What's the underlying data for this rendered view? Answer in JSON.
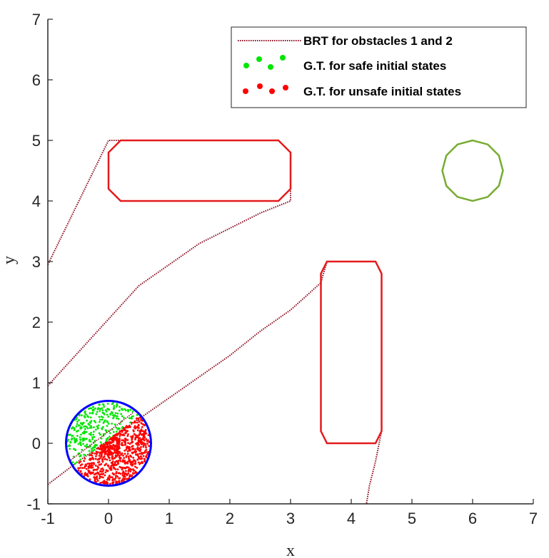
{
  "chart_data": {
    "type": "scatter",
    "xlabel": "x",
    "ylabel": "y",
    "xlim": [
      -1,
      7
    ],
    "ylim": [
      -1,
      7
    ],
    "xticks": [
      -1,
      0,
      1,
      2,
      3,
      4,
      5,
      6,
      7
    ],
    "yticks": [
      -1,
      0,
      1,
      2,
      3,
      4,
      5,
      6,
      7
    ],
    "grid": false,
    "legend_position": "top-right",
    "legend": [
      {
        "label": "BRT for obstacles 1 and 2",
        "kind": "dotted-line",
        "color": "#8b0a1e"
      },
      {
        "label": "G.T. for safe initial states",
        "kind": "markers",
        "color": "#00e600"
      },
      {
        "label": "G.T. for unsafe initial states",
        "kind": "markers",
        "color": "#ff0000"
      }
    ],
    "obstacles": [
      {
        "name": "obstacle-1",
        "color": "#e41a1c",
        "points": [
          [
            0.2,
            4.0
          ],
          [
            2.8,
            4.0
          ],
          [
            3.0,
            4.2
          ],
          [
            3.0,
            4.8
          ],
          [
            2.8,
            5.0
          ],
          [
            0.2,
            5.0
          ],
          [
            0.0,
            4.8
          ],
          [
            0.0,
            4.2
          ]
        ]
      },
      {
        "name": "obstacle-2",
        "color": "#e41a1c",
        "points": [
          [
            3.6,
            0.0
          ],
          [
            4.4,
            0.0
          ],
          [
            4.5,
            0.2
          ],
          [
            4.5,
            2.8
          ],
          [
            4.4,
            3.0
          ],
          [
            3.6,
            3.0
          ],
          [
            3.5,
            2.8
          ],
          [
            3.5,
            0.2
          ]
        ]
      }
    ],
    "goal": {
      "center": [
        6.0,
        4.5
      ],
      "radius": 0.5,
      "color": "#77ac30"
    },
    "initial_set": {
      "center": [
        0.0,
        0.0
      ],
      "radius": 0.7,
      "color": "#0000ff"
    },
    "brt_curves": [
      {
        "points": [
          [
            -1.0,
            2.95
          ],
          [
            0.0,
            5.0
          ],
          [
            0.2,
            5.0
          ]
        ]
      },
      {
        "points": [
          [
            -1.0,
            0.95
          ],
          [
            -0.5,
            1.5
          ],
          [
            0.0,
            2.05
          ],
          [
            0.5,
            2.6
          ],
          [
            1.0,
            2.95
          ],
          [
            1.5,
            3.3
          ],
          [
            2.0,
            3.55
          ],
          [
            2.5,
            3.8
          ],
          [
            3.0,
            4.0
          ],
          [
            3.0,
            4.2
          ]
        ]
      },
      {
        "points": [
          [
            -1.0,
            -0.68
          ],
          [
            -0.5,
            -0.3
          ],
          [
            0.0,
            0.05
          ],
          [
            0.5,
            0.4
          ],
          [
            1.0,
            0.75
          ],
          [
            1.5,
            1.1
          ],
          [
            2.0,
            1.45
          ],
          [
            2.5,
            1.85
          ],
          [
            3.0,
            2.2
          ],
          [
            3.5,
            2.65
          ],
          [
            3.6,
            3.0
          ]
        ]
      },
      {
        "points": [
          [
            4.5,
            0.2
          ],
          [
            4.4,
            -0.3
          ],
          [
            4.3,
            -0.7
          ],
          [
            4.25,
            -1.0
          ]
        ]
      }
    ],
    "separator_line": {
      "points": [
        [
          -0.65,
          -0.3
        ],
        [
          0.4,
          0.5
        ]
      ]
    },
    "samples": {
      "safe_count": 300,
      "unsafe_count": 700,
      "safe_color": "#00e600",
      "unsafe_color": "#ff0000"
    }
  }
}
